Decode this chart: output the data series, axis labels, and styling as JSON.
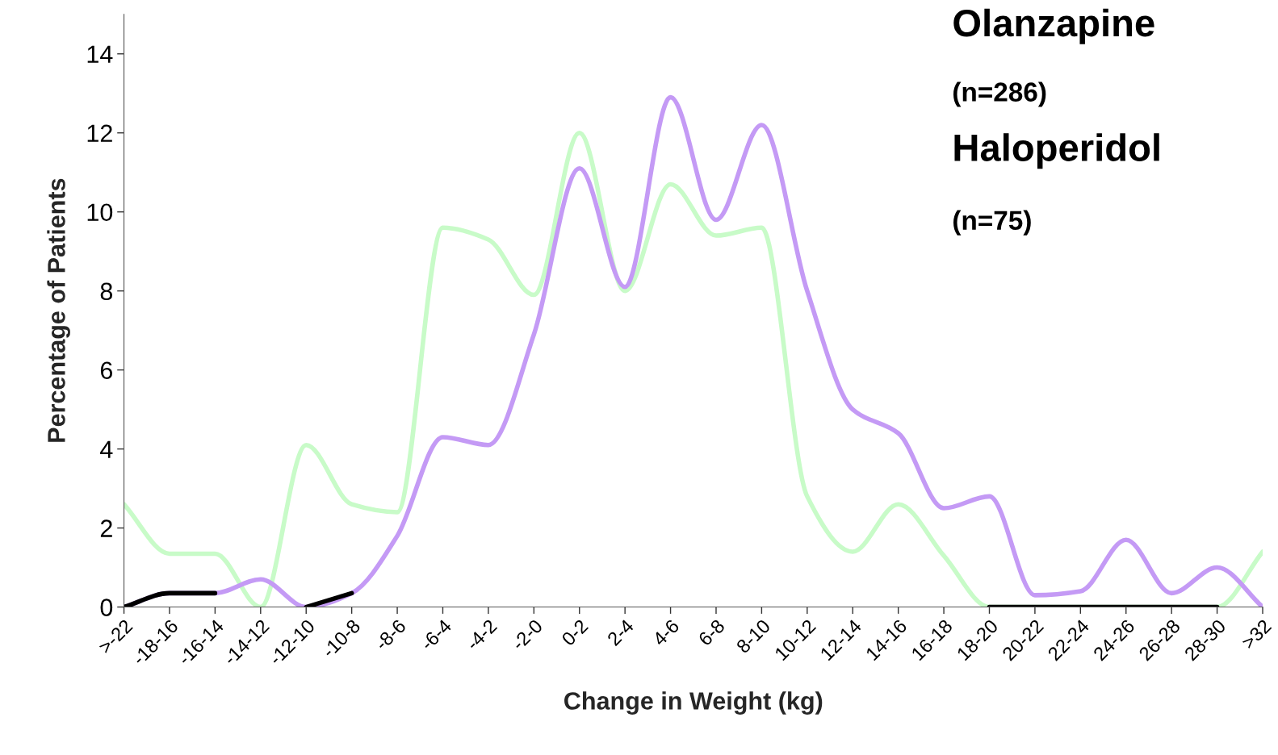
{
  "chart_data": {
    "type": "line",
    "xlabel": "Change in Weight (kg)",
    "ylabel": "Percentage of Patients",
    "categories": [
      ">-22",
      "-18-16",
      "-16-14",
      "-14-12",
      "-12-10",
      "-10-8",
      "-8-6",
      "-6-4",
      "-4-2",
      "-2-0",
      "0-2",
      "2-4",
      "4-6",
      "6-8",
      "8-10",
      "10-12",
      "12-14",
      "14-16",
      "16-18",
      "18-20",
      "20-22",
      "22-24",
      "24-26",
      "26-28",
      "28-30",
      ">32"
    ],
    "series": [
      {
        "color": "#c8fbc8",
        "values": [
          2.6,
          1.35,
          1.35,
          0,
          4.1,
          2.6,
          2.4,
          9.6,
          9.3,
          7.9,
          12.0,
          8.0,
          10.7,
          9.4,
          9.6,
          2.8,
          1.4,
          2.6,
          1.3,
          0,
          0,
          0,
          0,
          0,
          0,
          1.4
        ]
      },
      {
        "color": "#c49af5",
        "values": [
          0,
          0.35,
          0.35,
          0.7,
          0,
          0.35,
          1.8,
          4.3,
          4.1,
          6.9,
          11.1,
          8.1,
          12.9,
          9.8,
          12.2,
          8.0,
          5.0,
          4.4,
          2.5,
          2.8,
          0.3,
          0.4,
          1.7,
          0.35,
          1.0,
          0
        ]
      },
      {
        "color": "#000000",
        "values": [
          0,
          0.35,
          0.35,
          null,
          0,
          0.35,
          null,
          null,
          null,
          null,
          null,
          null,
          null,
          null,
          null,
          null,
          null,
          null,
          null,
          0,
          0,
          0,
          0,
          0,
          0,
          null
        ]
      }
    ],
    "ylim": [
      0,
      15
    ],
    "yticks": [
      0,
      2,
      4,
      6,
      8,
      10,
      12,
      14
    ],
    "grid": false,
    "legend": false,
    "marker": "none",
    "line_style": "solid",
    "annotations": [
      "Olanzapine",
      "(n=286)",
      "Haloperidol",
      "(n=75)"
    ]
  }
}
